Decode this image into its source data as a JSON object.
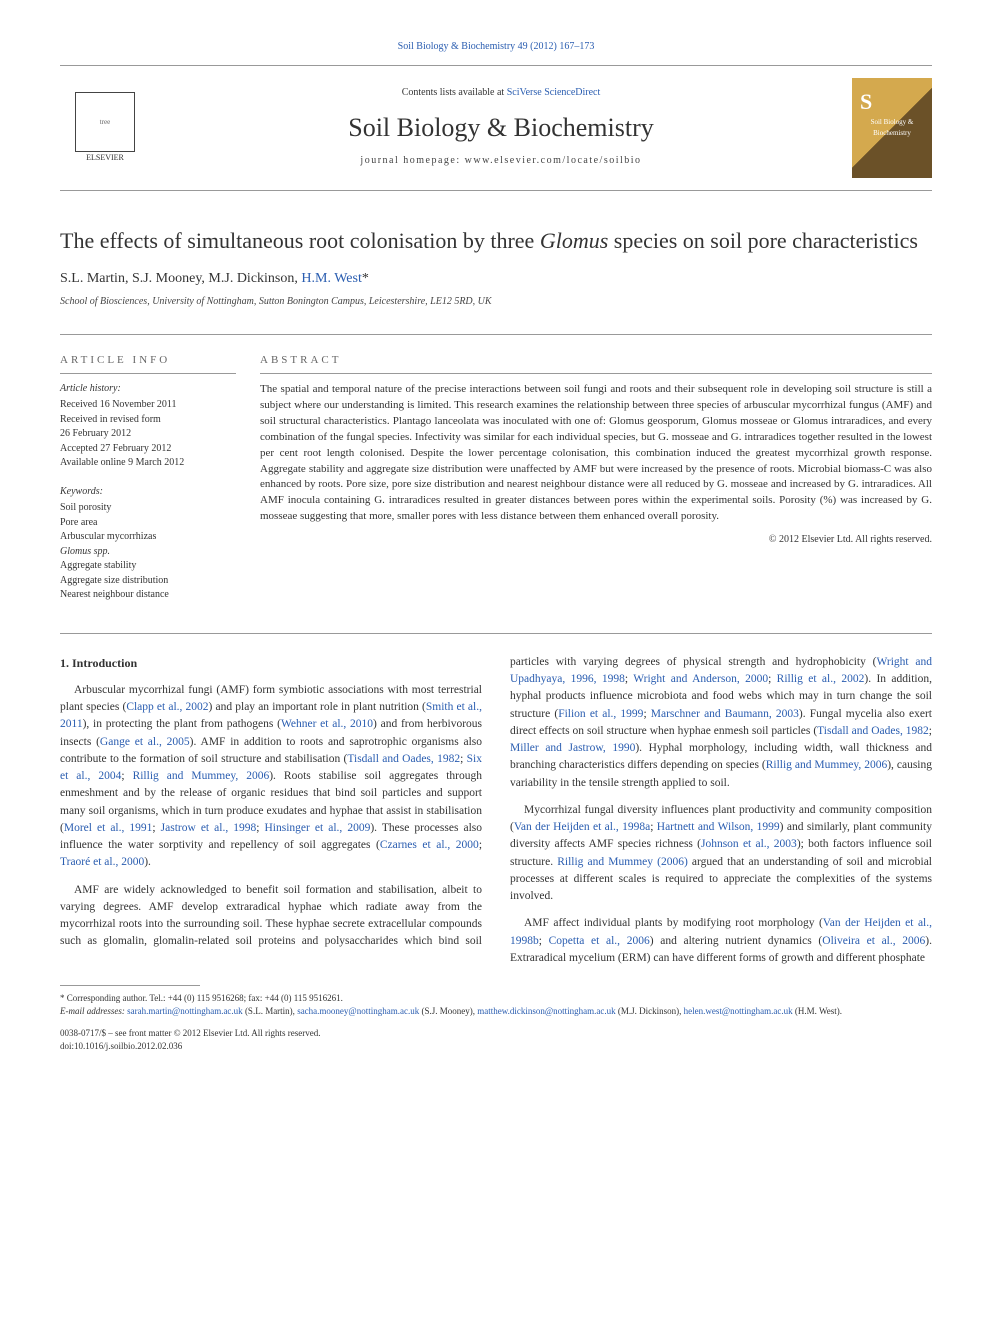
{
  "top_citation": "Soil Biology & Biochemistry 49 (2012) 167–173",
  "header": {
    "contents_prefix": "Contents lists available at ",
    "contents_link": "SciVerse ScienceDirect",
    "journal_title": "Soil Biology & Biochemistry",
    "homepage_label": "journal homepage: ",
    "homepage_url": "www.elsevier.com/locate/soilbio",
    "elsevier_label": "ELSEVIER",
    "cover_letter": "S",
    "cover_text": "Soil Biology & Biochemistry"
  },
  "article": {
    "title_part1": "The effects of simultaneous root colonisation by three ",
    "title_italic": "Glomus",
    "title_part2": " species on soil pore characteristics",
    "authors_plain": "S.L. Martin, S.J. Mooney, M.J. Dickinson, ",
    "author_corresponding": "H.M. West",
    "corresponding_marker": "*",
    "affiliation": "School of Biosciences, University of Nottingham, Sutton Bonington Campus, Leicestershire, LE12 5RD, UK"
  },
  "info": {
    "heading": "ARTICLE INFO",
    "history_label": "Article history:",
    "history_lines": [
      "Received 16 November 2011",
      "Received in revised form",
      "26 February 2012",
      "Accepted 27 February 2012",
      "Available online 9 March 2012"
    ],
    "keywords_label": "Keywords:",
    "keywords": [
      "Soil porosity",
      "Pore area",
      "Arbuscular mycorrhizas",
      "Glomus spp.",
      "Aggregate stability",
      "Aggregate size distribution",
      "Nearest neighbour distance"
    ]
  },
  "abstract": {
    "heading": "ABSTRACT",
    "text": "The spatial and temporal nature of the precise interactions between soil fungi and roots and their subsequent role in developing soil structure is still a subject where our understanding is limited. This research examines the relationship between three species of arbuscular mycorrhizal fungus (AMF) and soil structural characteristics. Plantago lanceolata was inoculated with one of: Glomus geosporum, Glomus mosseae or Glomus intraradices, and every combination of the fungal species. Infectivity was similar for each individual species, but G. mosseae and G. intraradices together resulted in the lowest per cent root length colonised. Despite the lower percentage colonisation, this combination induced the greatest mycorrhizal growth response. Aggregate stability and aggregate size distribution were unaffected by AMF but were increased by the presence of roots. Microbial biomass-C was also enhanced by roots. Pore size, pore size distribution and nearest neighbour distance were all reduced by G. mosseae and increased by G. intraradices. All AMF inocula containing G. intraradices resulted in greater distances between pores within the experimental soils. Porosity (%) was increased by G. mosseae suggesting that more, smaller pores with less distance between them enhanced overall porosity.",
    "copyright": "© 2012 Elsevier Ltd. All rights reserved."
  },
  "body": {
    "section1_heading": "1. Introduction",
    "p1_a": "Arbuscular mycorrhizal fungi (AMF) form symbiotic associations with most terrestrial plant species (",
    "p1_ref1": "Clapp et al., 2002",
    "p1_b": ") and play an important role in plant nutrition (",
    "p1_ref2": "Smith et al., 2011",
    "p1_c": "), in protecting the plant from pathogens (",
    "p1_ref3": "Wehner et al., 2010",
    "p1_d": ") and from herbivorous insects (",
    "p1_ref4": "Gange et al., 2005",
    "p1_e": "). AMF in addition to roots and saprotrophic organisms also contribute to the formation of soil structure and stabilisation (",
    "p1_ref5": "Tisdall and Oades, 1982",
    "p1_sep1": "; ",
    "p1_ref6": "Six et al., 2004",
    "p1_sep2": "; ",
    "p1_ref7": "Rillig and Mummey, 2006",
    "p1_f": "). Roots stabilise soil aggregates through enmeshment and by the release of organic residues that bind soil particles and support many soil organisms, which in turn produce exudates and hyphae that assist in stabilisation (",
    "p1_ref8": "Morel et al., 1991",
    "p1_sep3": "; ",
    "p1_ref9": "Jastrow et al., 1998",
    "p1_sep4": "; ",
    "p1_ref10": "Hinsinger et al., 2009",
    "p1_g": "). These processes also influence the water sorptivity and repellency of soil aggregates (",
    "p1_ref11": "Czarnes et al., 2000",
    "p1_sep5": "; ",
    "p1_ref12": "Traoré et al., 2000",
    "p1_h": ").",
    "p2_a": "AMF are widely acknowledged to benefit soil formation and stabilisation, albeit to varying degrees. AMF develop extraradical hyphae which radiate away from the mycorrhizal roots into the ",
    "p2_b": "surrounding soil. These hyphae secrete extracellular compounds such as glomalin, glomalin-related soil proteins and polysaccharides which bind soil particles with varying degrees of physical strength and hydrophobicity (",
    "p2_ref1": "Wright and Upadhyaya, 1996, 1998",
    "p2_sep1": "; ",
    "p2_ref2": "Wright and Anderson, 2000",
    "p2_sep2": "; ",
    "p2_ref3": "Rillig et al., 2002",
    "p2_c": "). In addition, hyphal products influence microbiota and food webs which may in turn change the soil structure (",
    "p2_ref4": "Filion et al., 1999",
    "p2_sep3": "; ",
    "p2_ref5": "Marschner and Baumann, 2003",
    "p2_d": "). Fungal mycelia also exert direct effects on soil structure when hyphae enmesh soil particles (",
    "p2_ref6": "Tisdall and Oades, 1982",
    "p2_sep4": "; ",
    "p2_ref7": "Miller and Jastrow, 1990",
    "p2_e": "). Hyphal morphology, including width, wall thickness and branching characteristics differs depending on species (",
    "p2_ref8": "Rillig and Mummey, 2006",
    "p2_f": "), causing variability in the tensile strength applied to soil.",
    "p3_a": "Mycorrhizal fungal diversity influences plant productivity and community composition (",
    "p3_ref1": "Van der Heijden et al., 1998a",
    "p3_sep1": "; ",
    "p3_ref2": "Hartnett and Wilson, 1999",
    "p3_b": ") and similarly, plant community diversity affects AMF species richness (",
    "p3_ref3": "Johnson et al., 2003",
    "p3_c": "); both factors influence soil structure. ",
    "p3_ref4": "Rillig and Mummey (2006)",
    "p3_d": " argued that an understanding of soil and microbial processes at different scales is required to appreciate the complexities of the systems involved.",
    "p4_a": "AMF affect individual plants by modifying root morphology (",
    "p4_ref1": "Van der Heijden et al., 1998b",
    "p4_sep1": "; ",
    "p4_ref2": "Copetta et al., 2006",
    "p4_b": ") and altering nutrient dynamics (",
    "p4_ref3": "Oliveira et al., 2006",
    "p4_c": "). Extraradical mycelium (ERM) can have different forms of growth and different phosphate"
  },
  "footnotes": {
    "corresponding": "* Corresponding author. Tel.: +44 (0) 115 9516268; fax: +44 (0) 115 9516261.",
    "email_label": "E-mail addresses: ",
    "emails": [
      {
        "addr": "sarah.martin@nottingham.ac.uk",
        "who": " (S.L. Martin), "
      },
      {
        "addr": "sacha.mooney@nottingham.ac.uk",
        "who": " (S.J. Mooney), "
      },
      {
        "addr": "matthew.dickinson@nottingham.ac.uk",
        "who": " (M.J. Dickinson), "
      },
      {
        "addr": "helen.west@nottingham.ac.uk",
        "who": " (H.M. West)."
      }
    ],
    "front_matter": "0038-0717/$ – see front matter © 2012 Elsevier Ltd. All rights reserved.",
    "doi_label": "doi:",
    "doi": "10.1016/j.soilbio.2012.02.036"
  },
  "style": {
    "link_color": "#2a5db0",
    "text_color": "#333333",
    "rule_color": "#999999",
    "body_font_size": 11.5,
    "title_font_size": 22,
    "journal_title_size": 26
  }
}
